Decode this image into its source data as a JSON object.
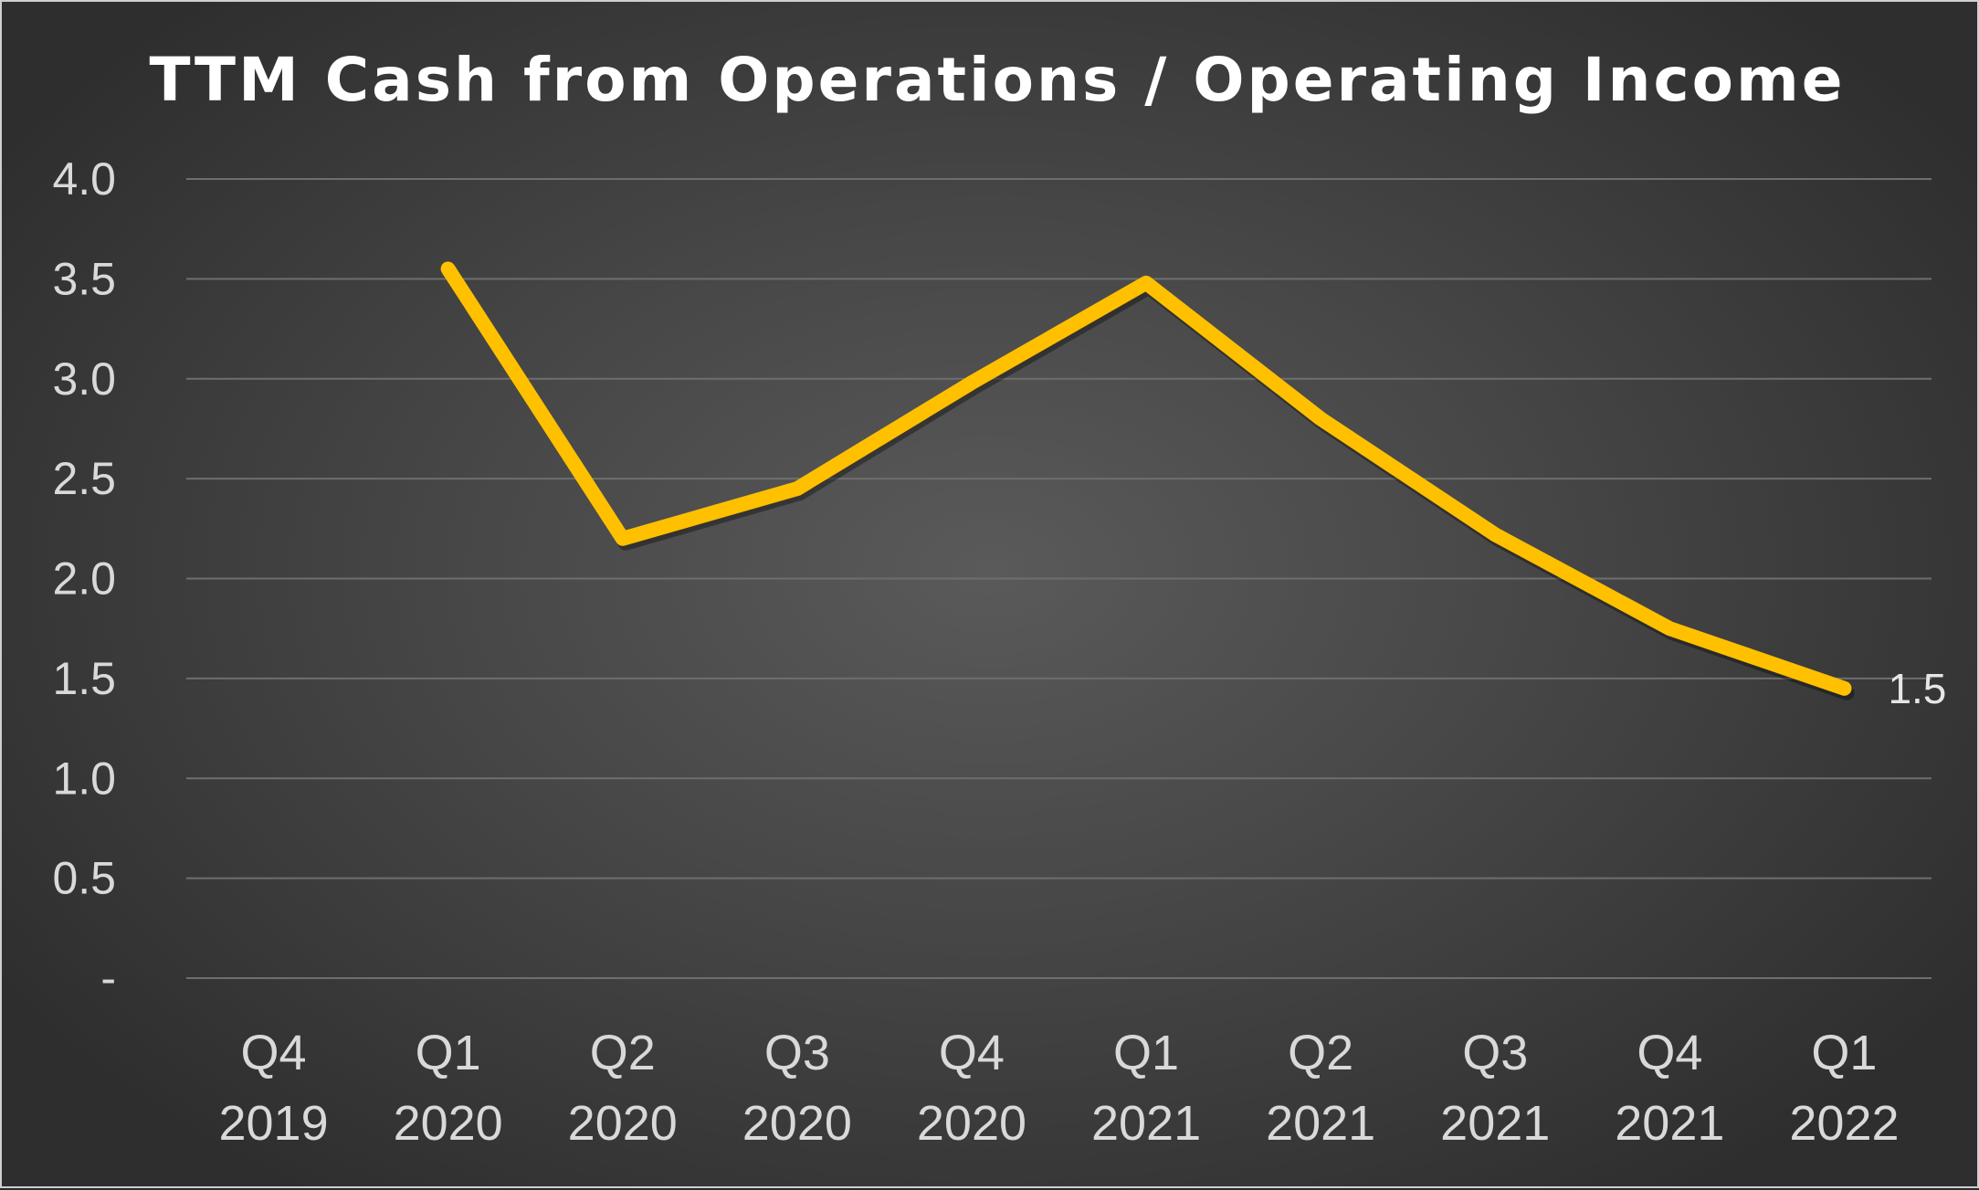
{
  "chart_data": {
    "type": "line",
    "title": "TTM Cash from Operations / Operating Income",
    "xlabel": "",
    "ylabel": "",
    "categories": [
      [
        "Q4",
        "2019"
      ],
      [
        "Q1",
        "2020"
      ],
      [
        "Q2",
        "2020"
      ],
      [
        "Q3",
        "2020"
      ],
      [
        "Q4",
        "2020"
      ],
      [
        "Q1",
        "2021"
      ],
      [
        "Q2",
        "2021"
      ],
      [
        "Q3",
        "2021"
      ],
      [
        "Q4",
        "2021"
      ],
      [
        "Q1",
        "2022"
      ]
    ],
    "y_ticks": [
      "-",
      "0.5",
      "1.0",
      "1.5",
      "2.0",
      "2.5",
      "3.0",
      "3.5",
      "4.0"
    ],
    "ylim": [
      0,
      4.0
    ],
    "grid": true,
    "legend": "none",
    "series": [
      {
        "values": [
          null,
          3.55,
          2.2,
          2.45,
          2.98,
          3.48,
          2.8,
          2.22,
          1.75,
          1.45
        ],
        "color": "#ffc000",
        "data_label": {
          "index": 9,
          "text": "1.5"
        }
      }
    ]
  }
}
